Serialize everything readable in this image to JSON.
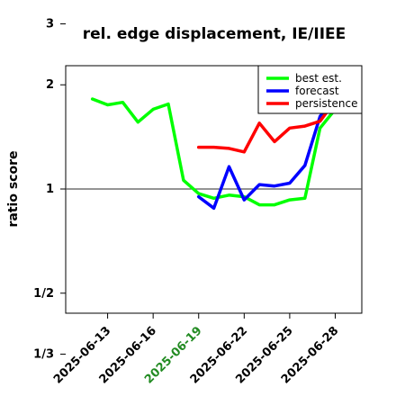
{
  "chart_data": {
    "type": "line",
    "title": "rel. edge displacement, IE/IIEE",
    "ylabel": "ratio score",
    "xlabel": "",
    "y_scale": "log",
    "y_ticks": [
      {
        "value": 0.3333,
        "label": "1/3"
      },
      {
        "value": 0.5,
        "label": "1/2"
      },
      {
        "value": 1,
        "label": "1"
      },
      {
        "value": 2,
        "label": "2"
      },
      {
        "value": 3,
        "label": "3"
      }
    ],
    "x_ticks": [
      {
        "value": "2025-06-13",
        "label": "2025-06-13",
        "color": "#000000"
      },
      {
        "value": "2025-06-16",
        "label": "2025-06-16",
        "color": "#000000"
      },
      {
        "value": "2025-06-19",
        "label": "2025-06-19",
        "color": "#228b22"
      },
      {
        "value": "2025-06-22",
        "label": "2025-06-22",
        "color": "#000000"
      },
      {
        "value": "2025-06-25",
        "label": "2025-06-25",
        "color": "#000000"
      },
      {
        "value": "2025-06-28",
        "label": "2025-06-28",
        "color": "#000000"
      }
    ],
    "xlim": [
      "2025-06-10",
      "2025-06-29"
    ],
    "reference_line": 1,
    "legend": {
      "placement": "top-right"
    },
    "series": [
      {
        "name": "best est.",
        "color": "#00ff00",
        "points": [
          [
            "2025-06-12",
            1.82
          ],
          [
            "2025-06-13",
            1.75
          ],
          [
            "2025-06-14",
            1.78
          ],
          [
            "2025-06-15",
            1.56
          ],
          [
            "2025-06-16",
            1.7
          ],
          [
            "2025-06-17",
            1.76
          ],
          [
            "2025-06-18",
            1.06
          ],
          [
            "2025-06-19",
            0.97
          ],
          [
            "2025-06-20",
            0.94
          ],
          [
            "2025-06-21",
            0.96
          ],
          [
            "2025-06-22",
            0.95
          ],
          [
            "2025-06-23",
            0.9
          ],
          [
            "2025-06-24",
            0.9
          ],
          [
            "2025-06-25",
            0.93
          ],
          [
            "2025-06-26",
            0.94
          ],
          [
            "2025-06-27",
            1.5
          ],
          [
            "2025-06-28",
            1.7
          ]
        ]
      },
      {
        "name": "forecast",
        "color": "#0000ff",
        "points": [
          [
            "2025-06-19",
            0.95
          ],
          [
            "2025-06-20",
            0.88
          ],
          [
            "2025-06-21",
            1.16
          ],
          [
            "2025-06-22",
            0.93
          ],
          [
            "2025-06-23",
            1.03
          ],
          [
            "2025-06-24",
            1.02
          ],
          [
            "2025-06-25",
            1.04
          ],
          [
            "2025-06-26",
            1.17
          ],
          [
            "2025-06-27",
            1.62
          ],
          [
            "2025-06-28",
            1.84
          ]
        ]
      },
      {
        "name": "persistence",
        "color": "#ff0000",
        "points": [
          [
            "2025-06-19",
            1.32
          ],
          [
            "2025-06-20",
            1.32
          ],
          [
            "2025-06-21",
            1.31
          ],
          [
            "2025-06-22",
            1.28
          ],
          [
            "2025-06-23",
            1.55
          ],
          [
            "2025-06-24",
            1.37
          ],
          [
            "2025-06-25",
            1.5
          ],
          [
            "2025-06-26",
            1.52
          ],
          [
            "2025-06-27",
            1.57
          ],
          [
            "2025-06-28",
            1.8
          ]
        ]
      }
    ]
  }
}
